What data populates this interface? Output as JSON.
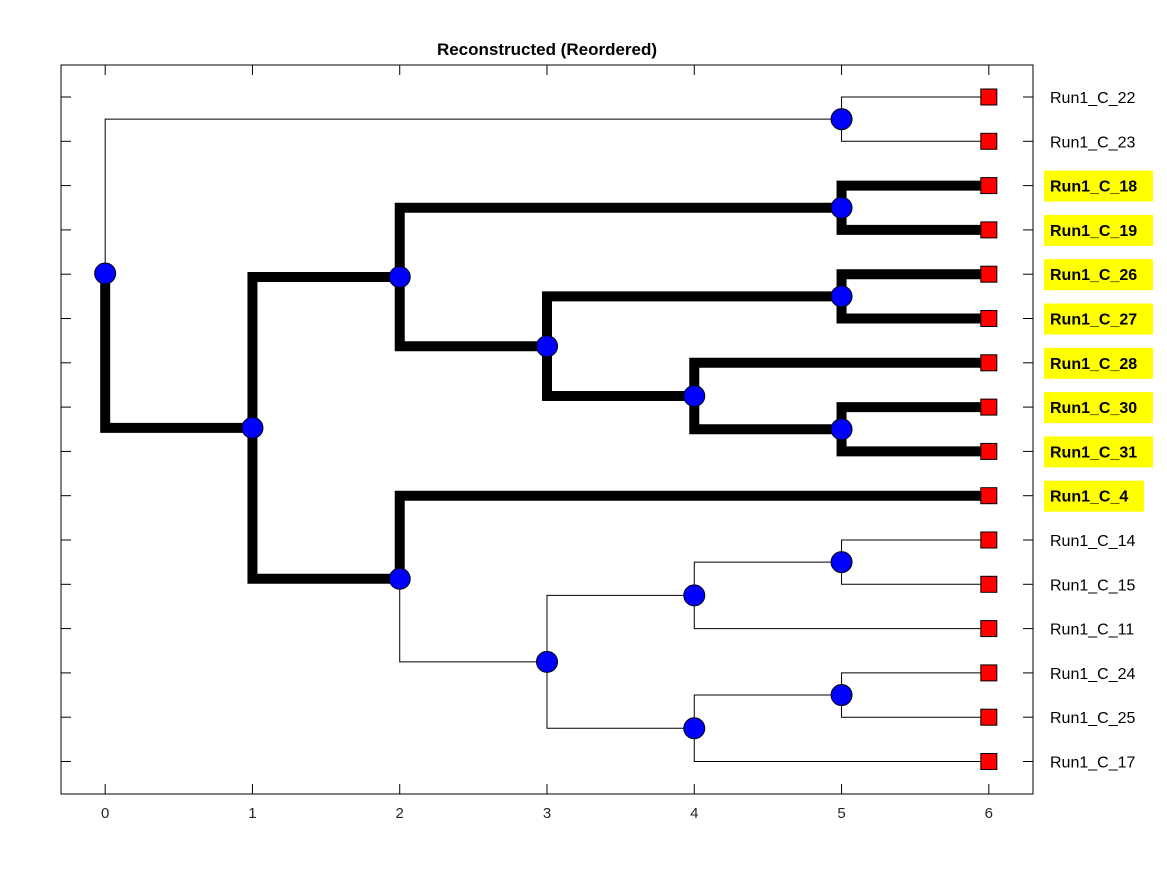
{
  "title": "Reconstructed (Reordered)",
  "chart_data": {
    "type": "dendrogram",
    "title": "Reconstructed (Reordered)",
    "xlabel": "",
    "ylabel": "",
    "xlim": [
      -0.3,
      6.3
    ],
    "x_ticks": [
      0,
      1,
      2,
      3,
      4,
      5,
      6
    ],
    "x_tick_labels": [
      "0",
      "1",
      "2",
      "3",
      "4",
      "5",
      "6"
    ],
    "leaf_rows": 16,
    "grid": false,
    "colors": {
      "internal_node": "#0000ff",
      "leaf_node": "#ff0000",
      "highlight_label_bg": "#ffff00",
      "edge": "#000000",
      "frame": "#000000",
      "background": "#ffffff"
    },
    "leaves": [
      {
        "id": "L22",
        "label": "Run1_C_22",
        "depth": 6,
        "row": 0,
        "highlighted": false
      },
      {
        "id": "L23",
        "label": "Run1_C_23",
        "depth": 6,
        "row": 1,
        "highlighted": false
      },
      {
        "id": "L18",
        "label": "Run1_C_18",
        "depth": 6,
        "row": 2,
        "highlighted": true
      },
      {
        "id": "L19",
        "label": "Run1_C_19",
        "depth": 6,
        "row": 3,
        "highlighted": true
      },
      {
        "id": "L26",
        "label": "Run1_C_26",
        "depth": 6,
        "row": 4,
        "highlighted": true
      },
      {
        "id": "L27",
        "label": "Run1_C_27",
        "depth": 6,
        "row": 5,
        "highlighted": true
      },
      {
        "id": "L28",
        "label": "Run1_C_28",
        "depth": 6,
        "row": 6,
        "highlighted": true
      },
      {
        "id": "L30",
        "label": "Run1_C_30",
        "depth": 6,
        "row": 7,
        "highlighted": true
      },
      {
        "id": "L31",
        "label": "Run1_C_31",
        "depth": 6,
        "row": 8,
        "highlighted": true
      },
      {
        "id": "L4",
        "label": "Run1_C_4",
        "depth": 6,
        "row": 9,
        "highlighted": true
      },
      {
        "id": "L14",
        "label": "Run1_C_14",
        "depth": 6,
        "row": 10,
        "highlighted": false
      },
      {
        "id": "L15",
        "label": "Run1_C_15",
        "depth": 6,
        "row": 11,
        "highlighted": false
      },
      {
        "id": "L11",
        "label": "Run1_C_11",
        "depth": 6,
        "row": 12,
        "highlighted": false
      },
      {
        "id": "L24",
        "label": "Run1_C_24",
        "depth": 6,
        "row": 13,
        "highlighted": false
      },
      {
        "id": "L25",
        "label": "Run1_C_25",
        "depth": 6,
        "row": 14,
        "highlighted": false
      },
      {
        "id": "L17",
        "label": "Run1_C_17",
        "depth": 6,
        "row": 15,
        "highlighted": false
      }
    ],
    "internal_nodes": [
      {
        "id": "root",
        "depth": 0,
        "children": [
          "n5a",
          "n1"
        ],
        "thick_children": [
          "n1"
        ]
      },
      {
        "id": "n5a",
        "depth": 5,
        "children": [
          "L22",
          "L23"
        ],
        "thick_children": []
      },
      {
        "id": "n1",
        "depth": 1,
        "children": [
          "n2a",
          "n2b"
        ],
        "thick_children": [
          "n2a",
          "n2b"
        ]
      },
      {
        "id": "n2a",
        "depth": 2,
        "children": [
          "n5b",
          "n3a"
        ],
        "thick_children": [
          "n5b",
          "n3a"
        ]
      },
      {
        "id": "n5b",
        "depth": 5,
        "children": [
          "L18",
          "L19"
        ],
        "thick_children": [
          "L18",
          "L19"
        ]
      },
      {
        "id": "n3a",
        "depth": 3,
        "children": [
          "n5c",
          "n4a"
        ],
        "thick_children": [
          "n5c",
          "n4a"
        ]
      },
      {
        "id": "n5c",
        "depth": 5,
        "children": [
          "L26",
          "L27"
        ],
        "thick_children": [
          "L26",
          "L27"
        ]
      },
      {
        "id": "n4a",
        "depth": 4,
        "children": [
          "L28",
          "n5d"
        ],
        "thick_children": [
          "L28",
          "n5d"
        ]
      },
      {
        "id": "n5d",
        "depth": 5,
        "children": [
          "L30",
          "L31"
        ],
        "thick_children": [
          "L30",
          "L31"
        ]
      },
      {
        "id": "n2b",
        "depth": 2,
        "children": [
          "L4",
          "n3b"
        ],
        "thick_children": [
          "L4"
        ]
      },
      {
        "id": "n3b",
        "depth": 3,
        "children": [
          "n4b",
          "n4c"
        ],
        "thick_children": []
      },
      {
        "id": "n4b",
        "depth": 4,
        "children": [
          "n5e",
          "L11"
        ],
        "thick_children": []
      },
      {
        "id": "n5e",
        "depth": 5,
        "children": [
          "L14",
          "L15"
        ],
        "thick_children": []
      },
      {
        "id": "n4c",
        "depth": 4,
        "children": [
          "n5f",
          "L17"
        ],
        "thick_children": []
      },
      {
        "id": "n5f",
        "depth": 5,
        "children": [
          "L24",
          "L25"
        ],
        "thick_children": []
      }
    ]
  }
}
